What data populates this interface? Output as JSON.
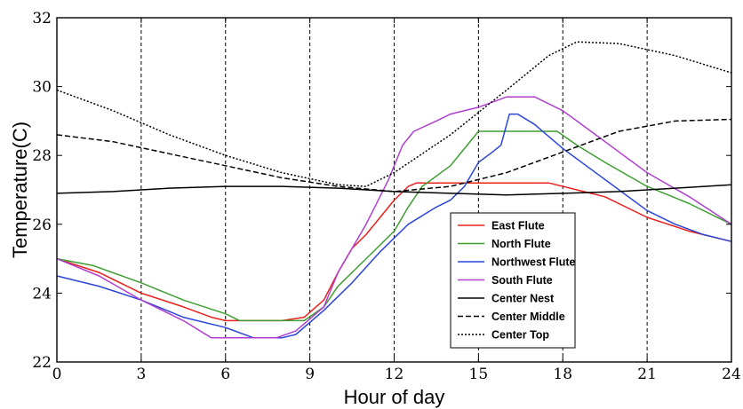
{
  "chart_data": {
    "type": "line",
    "title": "",
    "xlabel": "Hour of day",
    "ylabel": "Temperature(C)",
    "xlim": [
      0,
      24
    ],
    "ylim": [
      22,
      32
    ],
    "xticks": [
      0,
      3,
      6,
      9,
      12,
      15,
      18,
      21,
      24
    ],
    "yticks": [
      22,
      24,
      26,
      28,
      30,
      32
    ],
    "grid": "vertical dashed lines at x ticks",
    "legend_position": "lower-right",
    "series": [
      {
        "name": "East Flute",
        "color": "#e8211d",
        "dash": "solid",
        "points": [
          [
            0,
            25.0
          ],
          [
            1.5,
            24.6
          ],
          [
            3,
            24.0
          ],
          [
            4.5,
            23.6
          ],
          [
            5.5,
            23.3
          ],
          [
            6,
            23.2
          ],
          [
            7,
            23.2
          ],
          [
            8,
            23.2
          ],
          [
            8.8,
            23.3
          ],
          [
            9.5,
            23.8
          ],
          [
            10,
            24.6
          ],
          [
            10.5,
            25.3
          ],
          [
            11,
            25.7
          ],
          [
            11.5,
            26.2
          ],
          [
            12,
            26.7
          ],
          [
            12.5,
            27.1
          ],
          [
            12.8,
            27.2
          ],
          [
            14,
            27.2
          ],
          [
            15,
            27.2
          ],
          [
            16,
            27.2
          ],
          [
            17.5,
            27.2
          ],
          [
            18.5,
            27.0
          ],
          [
            19.5,
            26.8
          ],
          [
            21,
            26.2
          ],
          [
            22.5,
            25.8
          ],
          [
            24,
            25.5
          ]
        ]
      },
      {
        "name": "North Flute",
        "color": "#3f9e31",
        "dash": "solid",
        "points": [
          [
            0,
            25.0
          ],
          [
            1.3,
            24.8
          ],
          [
            3,
            24.3
          ],
          [
            4.5,
            23.8
          ],
          [
            6,
            23.4
          ],
          [
            6.5,
            23.2
          ],
          [
            7.5,
            23.2
          ],
          [
            8.8,
            23.2
          ],
          [
            9.5,
            23.6
          ],
          [
            10,
            24.2
          ],
          [
            11,
            25.0
          ],
          [
            12,
            25.8
          ],
          [
            12.5,
            26.5
          ],
          [
            13,
            27.1
          ],
          [
            14,
            27.7
          ],
          [
            14.5,
            28.2
          ],
          [
            15,
            28.7
          ],
          [
            16,
            28.7
          ],
          [
            17,
            28.7
          ],
          [
            17.8,
            28.7
          ],
          [
            18.5,
            28.3
          ],
          [
            19.5,
            27.8
          ],
          [
            21,
            27.1
          ],
          [
            22.5,
            26.6
          ],
          [
            24,
            26.0
          ]
        ]
      },
      {
        "name": "Northwest Flute",
        "color": "#2b45d8",
        "dash": "solid",
        "points": [
          [
            0,
            24.5
          ],
          [
            1.5,
            24.2
          ],
          [
            3,
            23.8
          ],
          [
            4.5,
            23.3
          ],
          [
            6,
            23.0
          ],
          [
            7,
            22.7
          ],
          [
            8,
            22.7
          ],
          [
            8.5,
            22.8
          ],
          [
            9.5,
            23.5
          ],
          [
            10.5,
            24.3
          ],
          [
            11.5,
            25.2
          ],
          [
            12.5,
            26.0
          ],
          [
            13.5,
            26.5
          ],
          [
            14,
            26.7
          ],
          [
            14.5,
            27.1
          ],
          [
            15,
            27.8
          ],
          [
            15.5,
            28.1
          ],
          [
            15.8,
            28.3
          ],
          [
            16.1,
            29.2
          ],
          [
            16.4,
            29.2
          ],
          [
            17,
            28.9
          ],
          [
            18,
            28.2
          ],
          [
            19,
            27.6
          ],
          [
            20,
            27.0
          ],
          [
            21,
            26.4
          ],
          [
            22,
            26.0
          ],
          [
            23,
            25.7
          ],
          [
            24,
            25.5
          ]
        ]
      },
      {
        "name": "South Flute",
        "color": "#b03fd1",
        "dash": "solid",
        "points": [
          [
            0,
            25.0
          ],
          [
            1.5,
            24.5
          ],
          [
            3,
            23.8
          ],
          [
            4.5,
            23.2
          ],
          [
            5.5,
            22.7
          ],
          [
            6.5,
            22.7
          ],
          [
            7.8,
            22.7
          ],
          [
            8.5,
            22.9
          ],
          [
            9.5,
            23.6
          ],
          [
            10,
            24.6
          ],
          [
            10.5,
            25.3
          ],
          [
            11,
            26.0
          ],
          [
            11.8,
            27.3
          ],
          [
            12.3,
            28.3
          ],
          [
            12.7,
            28.7
          ],
          [
            13.5,
            29.0
          ],
          [
            14,
            29.2
          ],
          [
            15,
            29.4
          ],
          [
            16,
            29.7
          ],
          [
            17,
            29.7
          ],
          [
            18,
            29.3
          ],
          [
            19,
            28.7
          ],
          [
            20,
            28.1
          ],
          [
            21,
            27.5
          ],
          [
            22.5,
            26.8
          ],
          [
            24,
            26.0
          ]
        ]
      },
      {
        "name": "Center Nest",
        "color": "#000000",
        "dash": "solid",
        "points": [
          [
            0,
            26.9
          ],
          [
            2,
            26.95
          ],
          [
            4,
            27.05
          ],
          [
            6,
            27.1
          ],
          [
            8,
            27.1
          ],
          [
            10,
            27.05
          ],
          [
            12,
            26.95
          ],
          [
            14,
            26.9
          ],
          [
            16,
            26.85
          ],
          [
            18,
            26.9
          ],
          [
            20,
            26.95
          ],
          [
            22,
            27.05
          ],
          [
            24,
            27.15
          ]
        ]
      },
      {
        "name": "Center Middle",
        "color": "#000000",
        "dash": "dashed",
        "points": [
          [
            0,
            28.6
          ],
          [
            2,
            28.4
          ],
          [
            4,
            28.05
          ],
          [
            6,
            27.7
          ],
          [
            8,
            27.35
          ],
          [
            10,
            27.1
          ],
          [
            12,
            26.95
          ],
          [
            14,
            27.1
          ],
          [
            16,
            27.5
          ],
          [
            18,
            28.1
          ],
          [
            20,
            28.7
          ],
          [
            22,
            29.0
          ],
          [
            24,
            29.05
          ]
        ]
      },
      {
        "name": "Center Top",
        "color": "#000000",
        "dash": "dotted",
        "points": [
          [
            0,
            29.9
          ],
          [
            2,
            29.3
          ],
          [
            4,
            28.6
          ],
          [
            6,
            28.0
          ],
          [
            8,
            27.5
          ],
          [
            10,
            27.15
          ],
          [
            11,
            27.1
          ],
          [
            12,
            27.5
          ],
          [
            14,
            28.6
          ],
          [
            16,
            29.9
          ],
          [
            17.5,
            30.9
          ],
          [
            18.5,
            31.3
          ],
          [
            20,
            31.25
          ],
          [
            22,
            30.9
          ],
          [
            24,
            30.4
          ]
        ]
      }
    ]
  }
}
